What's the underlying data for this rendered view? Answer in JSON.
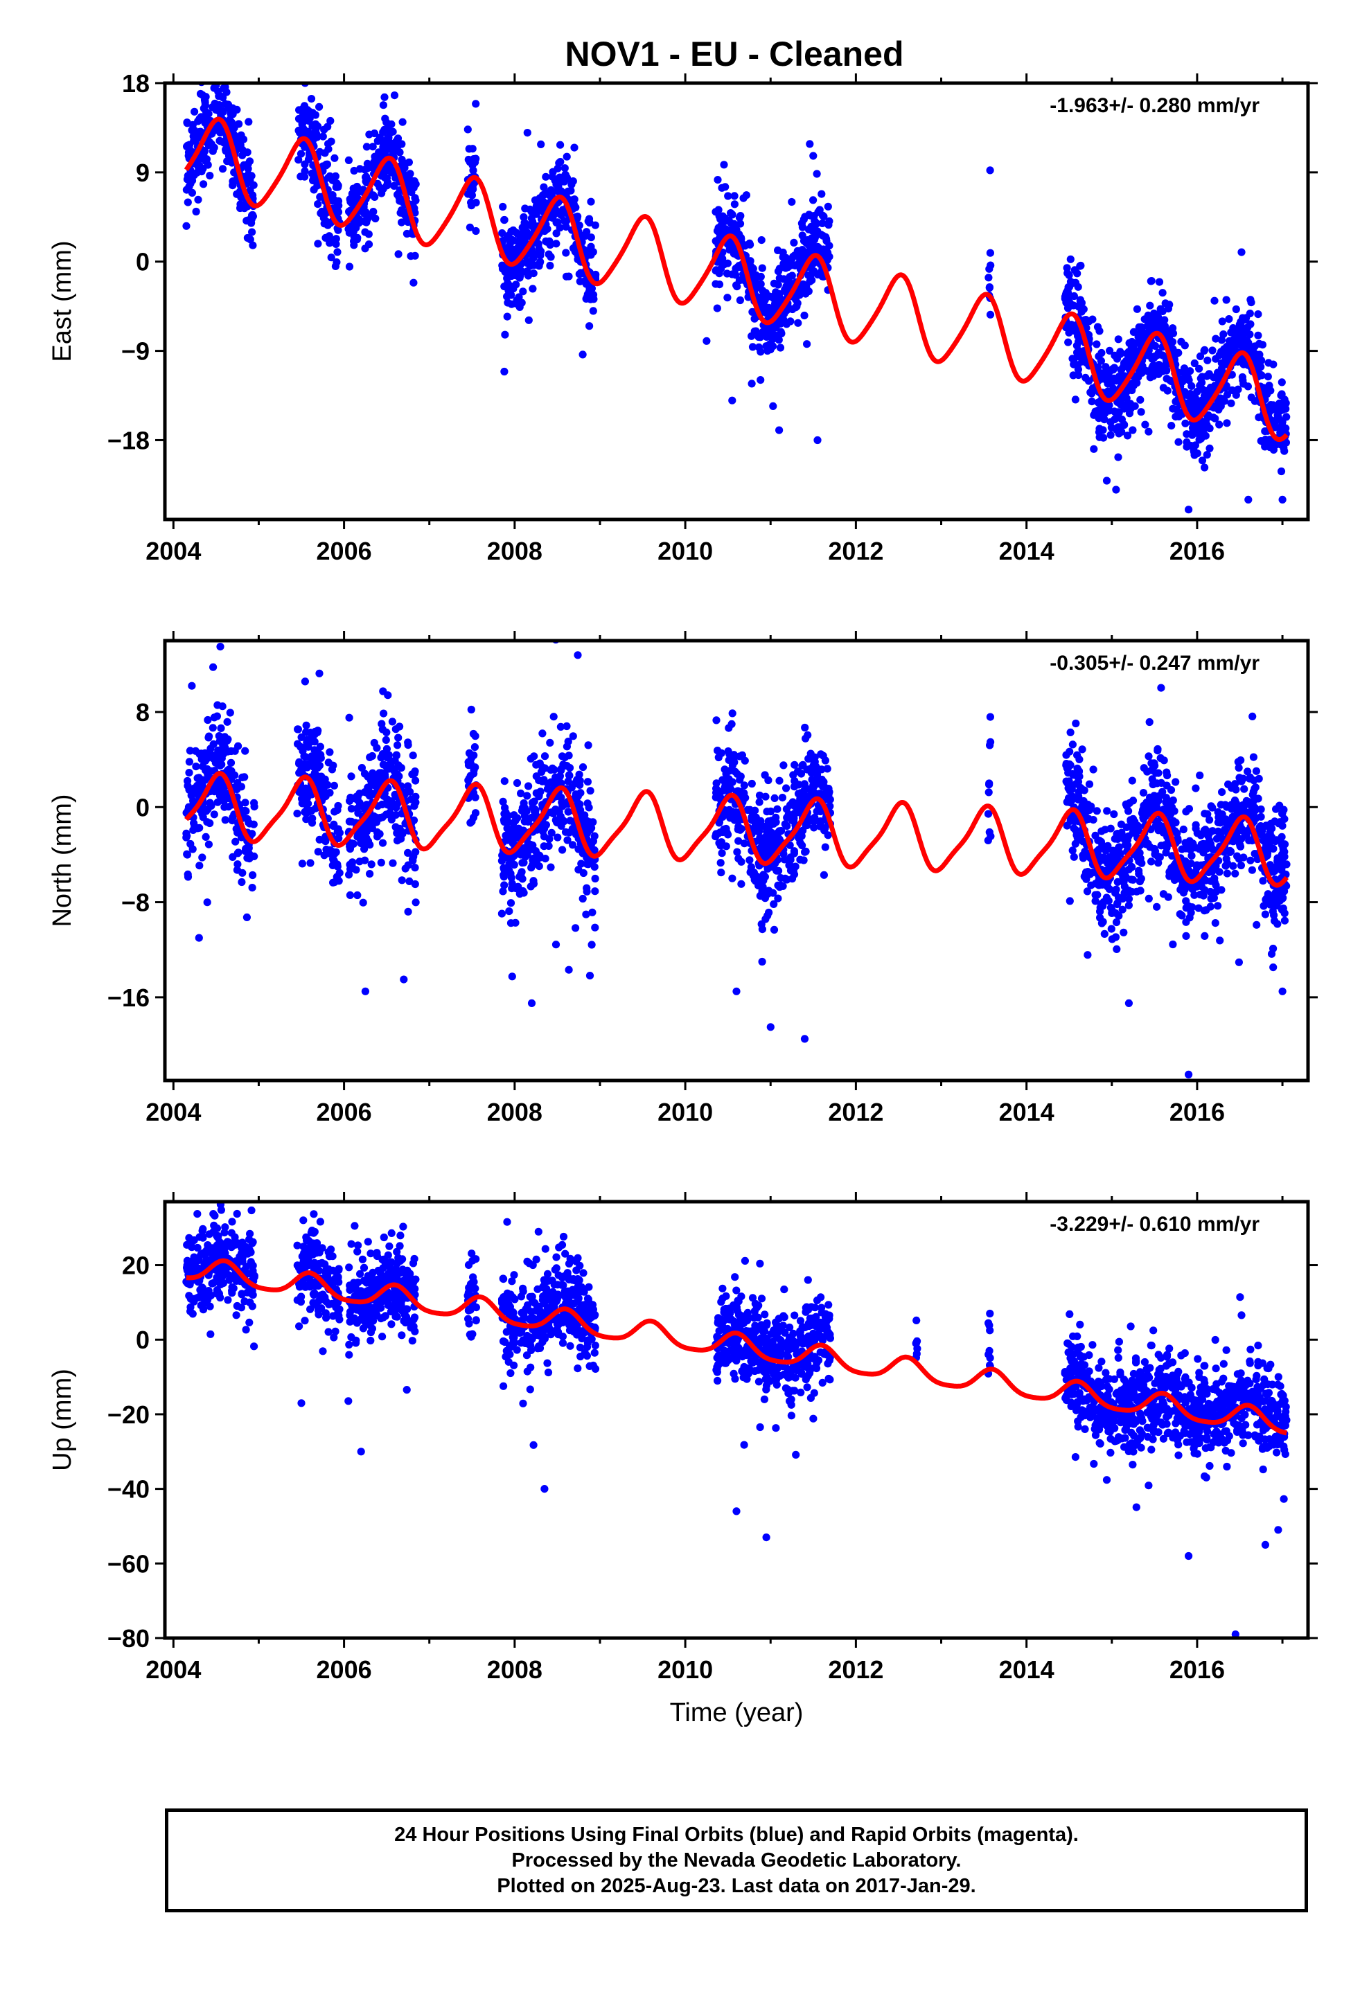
{
  "footer": {
    "line1": "24 Hour Positions Using Final Orbits (blue) and Rapid Orbits (magenta).",
    "line2": "Processed by the Nevada Geodetic Laboratory.",
    "line3": "Plotted on 2025-Aug-23. Last data on 2017-Jan-29."
  },
  "colors": {
    "data": "#0000ff",
    "model": "#ff0000",
    "frame": "#000000"
  },
  "chart_data": [
    {
      "type": "scatter",
      "panel": "east",
      "title": "NOV1  - EU - Cleaned",
      "ylabel": "East (mm)",
      "xlabel": "",
      "rate_text": "-1.963+/- 0.280 mm/yr",
      "xlim": [
        2003.9,
        2017.3
      ],
      "ylim": [
        -26,
        18
      ],
      "xticks": [
        2004,
        2006,
        2008,
        2010,
        2012,
        2014,
        2016
      ],
      "yticks": [
        18,
        9,
        0,
        -9,
        -18
      ],
      "ytick_labels": [
        "18",
        "9",
        "0",
        "−9",
        "−18"
      ],
      "grid": false,
      "model": {
        "name": "fit",
        "a0": 11.0,
        "start": 2004.15,
        "rate": -1.963,
        "amp_annual": 3.8,
        "phase_annual_peak": 0.5,
        "end": 2017.05,
        "segments": []
      },
      "series": [
        {
          "name": "",
          "kind": "points",
          "sd": 2.2,
          "segments": [
            [
              2004.15,
              2004.95,
              11.5
            ],
            [
              2005.45,
              2005.95,
              9.0
            ],
            [
              2006.05,
              2006.85,
              7.0
            ],
            [
              2007.45,
              2007.55,
              6.0
            ],
            [
              2007.85,
              2008.95,
              3.0
            ],
            [
              2010.35,
              2011.7,
              -1.0
            ],
            [
              2013.55,
              2013.58,
              -4.0
            ],
            [
              2014.45,
              2014.55,
              -5.0
            ],
            [
              2014.55,
              2017.05,
              -11.0
            ]
          ],
          "outliers": [
            [
              2008.15,
              13
            ],
            [
              2008.7,
              11.5
            ],
            [
              2010.25,
              -8
            ],
            [
              2010.55,
              -14
            ],
            [
              2011.1,
              -17
            ],
            [
              2011.55,
              -18
            ],
            [
              2015.05,
              -23
            ],
            [
              2015.9,
              -25
            ],
            [
              2016.6,
              -24
            ],
            [
              2017.0,
              -24
            ]
          ]
        }
      ]
    },
    {
      "type": "scatter",
      "panel": "north",
      "title": "",
      "ylabel": "North (mm)",
      "xlabel": "",
      "rate_text": "-0.305+/- 0.247 mm/yr",
      "xlim": [
        2003.9,
        2017.3
      ],
      "ylim": [
        -23,
        14
      ],
      "xticks": [
        2004,
        2006,
        2008,
        2010,
        2012,
        2014,
        2016
      ],
      "yticks": [
        8,
        0,
        -8,
        -16
      ],
      "ytick_labels": [
        "8",
        "0",
        "−8",
        "−16"
      ],
      "grid": false,
      "model": {
        "name": "fit",
        "a0": 0.0,
        "start": 2004.15,
        "rate": -0.305,
        "amp_annual": 2.6,
        "phase_annual_peak": 0.5,
        "end": 2017.05,
        "segments": []
      },
      "series": [
        {
          "name": "",
          "kind": "points",
          "sd": 2.3,
          "segments": [
            [
              2004.15,
              2004.95,
              0.5
            ],
            [
              2005.45,
              2005.95,
              1.0
            ],
            [
              2006.05,
              2006.85,
              0.0
            ],
            [
              2007.45,
              2007.55,
              2.0
            ],
            [
              2007.85,
              2008.95,
              -1.0
            ],
            [
              2010.35,
              2011.7,
              -1.0
            ],
            [
              2013.55,
              2013.58,
              1.0
            ],
            [
              2014.45,
              2014.55,
              1.0
            ],
            [
              2014.55,
              2017.05,
              -2.5
            ]
          ],
          "outliers": [
            [
              2004.55,
              13.5
            ],
            [
              2004.3,
              -11
            ],
            [
              2006.25,
              -15.5
            ],
            [
              2006.7,
              -14.5
            ],
            [
              2008.2,
              -16.5
            ],
            [
              2010.6,
              -15.5
            ],
            [
              2011.0,
              -18.5
            ],
            [
              2011.4,
              -19.5
            ],
            [
              2015.2,
              -16.5
            ],
            [
              2015.9,
              -22.5
            ],
            [
              2017.0,
              -15.5
            ]
          ]
        }
      ]
    },
    {
      "type": "scatter",
      "panel": "up",
      "title": "",
      "ylabel": "Up (mm)",
      "xlabel": "Time (year)",
      "rate_text": "-3.229+/- 0.610 mm/yr",
      "xlim": [
        2003.9,
        2017.3
      ],
      "ylim": [
        -80,
        37
      ],
      "xticks": [
        2004,
        2006,
        2008,
        2010,
        2012,
        2014,
        2016
      ],
      "yticks": [
        20,
        0,
        -20,
        -40,
        -60,
        -80
      ],
      "ytick_labels": [
        "20",
        "0",
        "−20",
        "−40",
        "−60",
        "−80"
      ],
      "grid": false,
      "model": {
        "name": "fit",
        "a0": 19.0,
        "start": 2004.15,
        "rate": -3.229,
        "amp_annual": 3.0,
        "phase_annual_peak": 0.6,
        "end": 2017.05,
        "segments": []
      },
      "series": [
        {
          "name": "",
          "kind": "points",
          "sd": 5.5,
          "segments": [
            [
              2004.15,
              2004.95,
              20.0
            ],
            [
              2005.45,
              2005.95,
              17.0
            ],
            [
              2006.05,
              2006.85,
              14.0
            ],
            [
              2007.45,
              2007.55,
              12.0
            ],
            [
              2007.85,
              2008.95,
              8.0
            ],
            [
              2010.35,
              2011.7,
              -1.0
            ],
            [
              2012.7,
              2012.72,
              5.0
            ],
            [
              2013.55,
              2013.58,
              0.0
            ],
            [
              2014.45,
              2014.55,
              -10.0
            ],
            [
              2014.55,
              2017.05,
              -17.0
            ]
          ],
          "outliers": [
            [
              2005.5,
              -17
            ],
            [
              2006.2,
              -30
            ],
            [
              2008.35,
              -40
            ],
            [
              2010.6,
              -46
            ],
            [
              2010.95,
              -53
            ],
            [
              2015.9,
              -58
            ],
            [
              2016.45,
              -79
            ],
            [
              2016.8,
              -55
            ],
            [
              2016.95,
              -51
            ]
          ]
        }
      ]
    }
  ]
}
